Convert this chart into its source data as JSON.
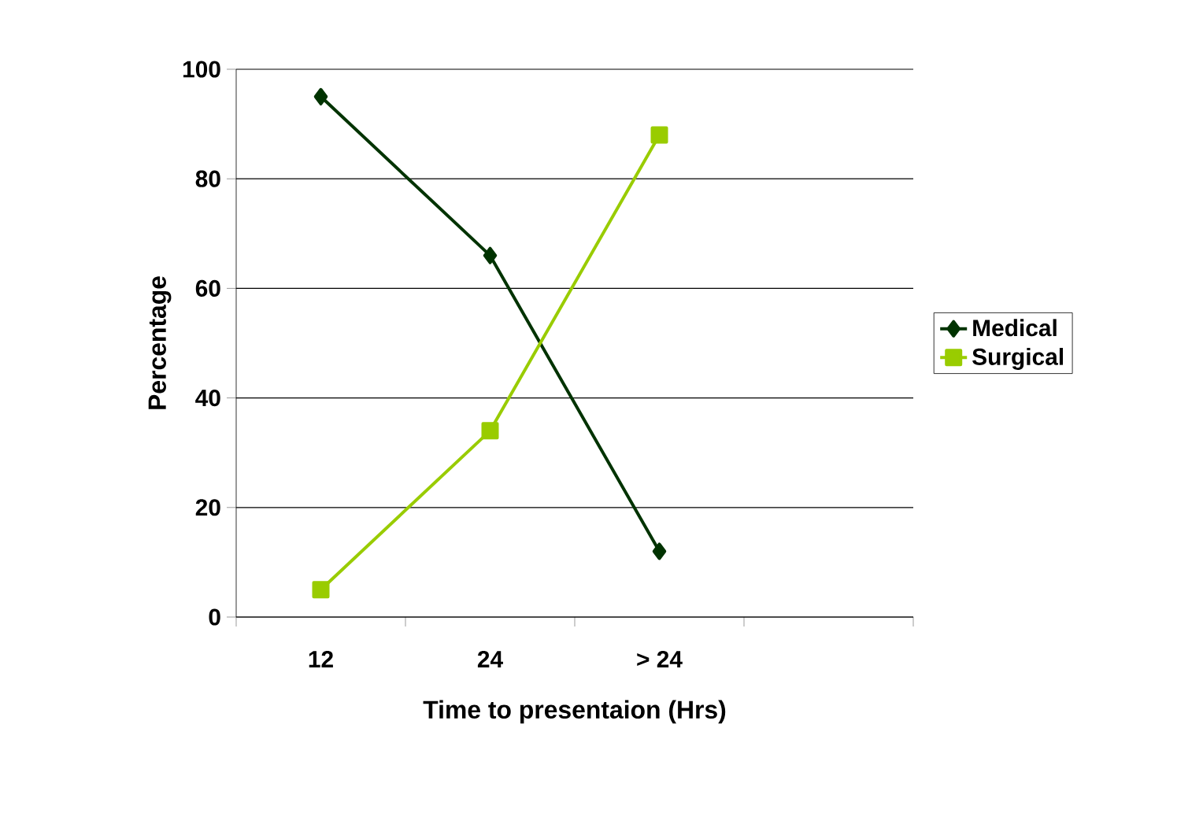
{
  "chart_data": {
    "type": "line",
    "xlabel": "Time to presentaion (Hrs)",
    "ylabel": "Percentage",
    "categories": [
      "12",
      "24",
      "> 24",
      null
    ],
    "series": [
      {
        "name": "Medical",
        "color": "#003300",
        "marker": "diamond",
        "values": [
          95,
          66,
          12,
          null
        ]
      },
      {
        "name": "Surgical",
        "color": "#99cc00",
        "marker": "square",
        "values": [
          5,
          34,
          88,
          null
        ]
      }
    ],
    "ylim": [
      0,
      100
    ],
    "yticks": [
      0,
      20,
      40,
      60,
      80,
      100
    ],
    "grid": "y",
    "legend": "right",
    "line_style": "solid"
  }
}
